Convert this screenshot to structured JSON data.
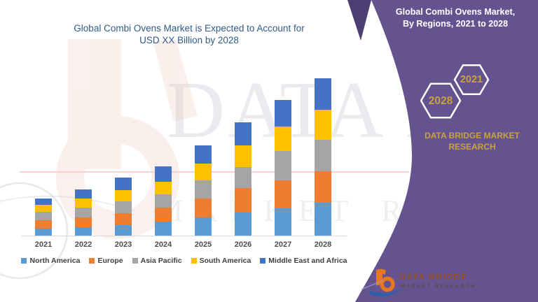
{
  "title": {
    "line1": "Global Combi Ovens Market is Expected to Account for",
    "line2": "USD XX Billion by 2028"
  },
  "banner": {
    "heading_line1": "Global Combi Ovens Market,",
    "heading_line2": "By Regions,  2021 to 2028",
    "hexagon_left": "2028",
    "hexagon_right": "2021",
    "brand_line1": "DATA BRIDGE MARKET",
    "brand_line2": "RESEARCH"
  },
  "footer_logo": {
    "name": "DATA BRIDGE",
    "tagline": "MARKET RESEARCH"
  },
  "watermark": {
    "big": "DATA BRI",
    "small": "MARKET RESE"
  },
  "colors": {
    "purple_band": "#655390",
    "purple_dark": "#4E3F73",
    "gold": "#C9A23C",
    "title_blue": "#2F5B8A",
    "axis_text": "#4D4D4D",
    "legend_text": "#404040",
    "logo_orange": "#E87722",
    "logo_blue": "#2F5FA8",
    "axis_line": "#D9D9D9"
  },
  "chart_data": {
    "type": "bar",
    "stacked": true,
    "title": "Global Combi Ovens Market is Expected to Account for USD XX Billion by 2028",
    "categories": [
      "2021",
      "2022",
      "2023",
      "2024",
      "2025",
      "2026",
      "2027",
      "2028"
    ],
    "series": [
      {
        "name": "North America",
        "color": "#5B9BD5",
        "values": [
          10,
          12,
          15,
          20,
          26,
          33,
          39,
          47
        ]
      },
      {
        "name": "Europe",
        "color": "#ED7D31",
        "values": [
          12,
          14,
          17,
          20,
          27,
          35,
          40,
          45
        ]
      },
      {
        "name": "Asia Pacific",
        "color": "#A5A5A5",
        "values": [
          12,
          14,
          17,
          19,
          26,
          30,
          42,
          45
        ]
      },
      {
        "name": "South America",
        "color": "#FFC000",
        "values": [
          10,
          13,
          16,
          18,
          24,
          31,
          35,
          43
        ]
      },
      {
        "name": "Middle East and Africa",
        "color": "#4472C4",
        "values": [
          9,
          13,
          18,
          22,
          26,
          33,
          38,
          45
        ]
      }
    ],
    "xlabel": "",
    "ylabel": "",
    "ylim": [
      0,
      240
    ],
    "grid": false,
    "legend_position": "bottom",
    "value_note": "relative index units; source labels values as USD XX Billion"
  }
}
